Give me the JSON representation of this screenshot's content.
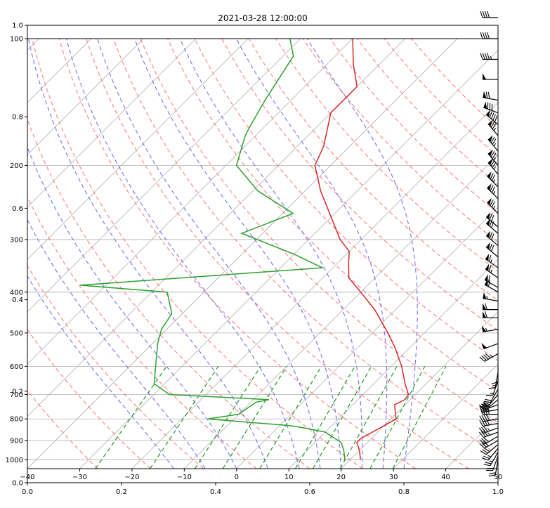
{
  "chart_data": {
    "type": "line",
    "title": "2021-03-28 12:00:00",
    "xlabel": "",
    "ylabel": "",
    "grid": true,
    "xlim": [
      -40,
      50
    ],
    "ylim_pressure_hpa": [
      1050,
      100
    ],
    "x_ticks": [
      -40,
      -30,
      -20,
      -10,
      0,
      10,
      20,
      30,
      40,
      50
    ],
    "p_ticks": [
      100,
      200,
      300,
      400,
      500,
      600,
      700,
      800,
      900,
      1000
    ],
    "frame_x_ticks": [
      "0.0",
      "0.2",
      "0.4",
      "0.6",
      "0.8",
      "1.0"
    ],
    "frame_y_ticks": [
      "0.0",
      "0.2",
      "0.4",
      "0.6",
      "0.8",
      "1.0"
    ],
    "series": [
      {
        "color": "#d62728",
        "points": [
          [
            1000,
            22
          ],
          [
            950,
            20
          ],
          [
            910,
            18
          ],
          [
            890,
            18
          ],
          [
            860,
            19
          ],
          [
            830,
            20
          ],
          [
            800,
            21
          ],
          [
            770,
            19.5
          ],
          [
            740,
            18
          ],
          [
            720,
            19
          ],
          [
            700,
            18.7
          ],
          [
            660,
            16
          ],
          [
            600,
            12
          ],
          [
            540,
            7
          ],
          [
            500,
            3
          ],
          [
            440,
            -4
          ],
          [
            400,
            -10
          ],
          [
            370,
            -15
          ],
          [
            340,
            -18
          ],
          [
            320,
            -20
          ],
          [
            300,
            -24
          ],
          [
            260,
            -31
          ],
          [
            230,
            -37
          ],
          [
            200,
            -43
          ],
          [
            180,
            -45
          ],
          [
            150,
            -50
          ],
          [
            130,
            -50
          ],
          [
            115,
            -55
          ],
          [
            100,
            -60
          ]
        ]
      },
      {
        "color": "#2ca02c",
        "points": [
          [
            1000,
            19
          ],
          [
            950,
            17
          ],
          [
            910,
            15
          ],
          [
            880,
            12
          ],
          [
            860,
            10
          ],
          [
            840,
            5
          ],
          [
            830,
            2
          ],
          [
            800,
            -15
          ],
          [
            780,
            -10
          ],
          [
            730,
            -9
          ],
          [
            720,
            -7
          ],
          [
            700,
            -27
          ],
          [
            660,
            -32
          ],
          [
            530,
            -39
          ],
          [
            490,
            -41
          ],
          [
            450,
            -42
          ],
          [
            400,
            -47
          ],
          [
            385,
            -65
          ],
          [
            350,
            -22
          ],
          [
            325,
            -30
          ],
          [
            290,
            -44
          ],
          [
            260,
            -38
          ],
          [
            230,
            -49
          ],
          [
            200,
            -58
          ],
          [
            170,
            -62
          ],
          [
            160,
            -63
          ],
          [
            140,
            -65
          ],
          [
            110,
            -68
          ],
          [
            100,
            -72
          ]
        ]
      }
    ],
    "dry_adiabats_theta_C": [
      -30,
      -20,
      -10,
      0,
      10,
      20,
      30,
      40,
      50,
      60,
      70,
      80,
      90,
      100,
      110,
      120,
      130,
      140,
      150,
      160
    ],
    "moist_adiabats_start_C": [
      -12,
      -6,
      0,
      6,
      12,
      16,
      20,
      24,
      28,
      32
    ],
    "mixing_ratio_lines_gkg": [
      0.4,
      1,
      2,
      3,
      5,
      8,
      10,
      14,
      20,
      26
    ],
    "wind_barbs": [
      [
        1000,
        190,
        20
      ],
      [
        980,
        200,
        22
      ],
      [
        960,
        210,
        25
      ],
      [
        940,
        220,
        25
      ],
      [
        920,
        230,
        28
      ],
      [
        900,
        240,
        30
      ],
      [
        880,
        240,
        32
      ],
      [
        860,
        250,
        35
      ],
      [
        840,
        250,
        35
      ],
      [
        820,
        260,
        38
      ],
      [
        800,
        260,
        40
      ],
      [
        780,
        270,
        40
      ],
      [
        760,
        260,
        38
      ],
      [
        740,
        250,
        35
      ],
      [
        720,
        230,
        30
      ],
      [
        700,
        220,
        25
      ],
      [
        680,
        210,
        20
      ],
      [
        650,
        200,
        15
      ],
      [
        620,
        190,
        15
      ],
      [
        600,
        180,
        10
      ],
      [
        560,
        240,
        45
      ],
      [
        530,
        250,
        50
      ],
      [
        490,
        260,
        55
      ],
      [
        460,
        270,
        60
      ],
      [
        440,
        270,
        60
      ],
      [
        420,
        280,
        55
      ],
      [
        400,
        300,
        60
      ],
      [
        390,
        300,
        60
      ],
      [
        370,
        305,
        65
      ],
      [
        350,
        305,
        65
      ],
      [
        330,
        310,
        70
      ],
      [
        310,
        310,
        70
      ],
      [
        290,
        310,
        70
      ],
      [
        280,
        310,
        70
      ],
      [
        260,
        315,
        75
      ],
      [
        240,
        315,
        75
      ],
      [
        225,
        315,
        75
      ],
      [
        210,
        320,
        75
      ],
      [
        200,
        320,
        75
      ],
      [
        185,
        320,
        75
      ],
      [
        170,
        320,
        75
      ],
      [
        160,
        310,
        90
      ],
      [
        150,
        290,
        80
      ],
      [
        140,
        280,
        70
      ],
      [
        125,
        270,
        50
      ],
      [
        112,
        270,
        45
      ],
      [
        100,
        270,
        40
      ],
      [
        97,
        270,
        40
      ]
    ]
  }
}
